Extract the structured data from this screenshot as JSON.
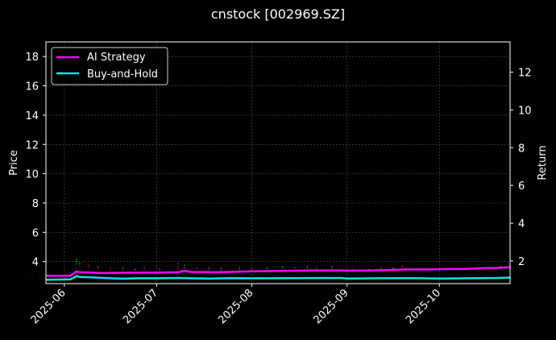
{
  "chart_data": {
    "type": "line",
    "title": "cnstock [002969.SZ]",
    "ylabel_left": "Price",
    "ylabel_right": "Return",
    "x_ticks": [
      "2025-06",
      "2025-07",
      "2025-08",
      "2025-09",
      "2025-10"
    ],
    "x_tick_dates": [
      "2025-06-01",
      "2025-07-01",
      "2025-08-01",
      "2025-09-01",
      "2025-10-01"
    ],
    "xlim": [
      "2025-05-26",
      "2025-10-24"
    ],
    "ylim_left": [
      2.5,
      19
    ],
    "yticks_left": [
      4,
      6,
      8,
      10,
      12,
      14,
      16,
      18
    ],
    "ylim_right": [
      0.8,
      13.6
    ],
    "yticks_right": [
      2,
      4,
      6,
      8,
      10,
      12
    ],
    "grid": true,
    "legend_position": "top-left",
    "colors": {
      "background": "#000000",
      "ai": "#ff00ff",
      "bh": "#00e5e5",
      "up": "#00c853",
      "down": "#ff1744",
      "grid": "#555555"
    },
    "series": [
      {
        "name": "AI Strategy",
        "axis": "right",
        "points": [
          [
            "2025-05-26",
            1.22
          ],
          [
            "2025-05-30",
            1.22
          ],
          [
            "2025-06-03",
            1.22
          ],
          [
            "2025-06-05",
            1.45
          ],
          [
            "2025-06-06",
            1.4
          ],
          [
            "2025-06-10",
            1.38
          ],
          [
            "2025-06-13",
            1.36
          ],
          [
            "2025-06-18",
            1.37
          ],
          [
            "2025-06-25",
            1.38
          ],
          [
            "2025-07-01",
            1.38
          ],
          [
            "2025-07-08",
            1.4
          ],
          [
            "2025-07-10",
            1.48
          ],
          [
            "2025-07-12",
            1.42
          ],
          [
            "2025-07-18",
            1.41
          ],
          [
            "2025-07-20",
            1.4
          ],
          [
            "2025-07-25",
            1.42
          ],
          [
            "2025-08-01",
            1.45
          ],
          [
            "2025-08-10",
            1.47
          ],
          [
            "2025-08-20",
            1.49
          ],
          [
            "2025-08-30",
            1.5
          ],
          [
            "2025-09-01",
            1.48
          ],
          [
            "2025-09-08",
            1.49
          ],
          [
            "2025-09-15",
            1.52
          ],
          [
            "2025-09-20",
            1.55
          ],
          [
            "2025-09-30",
            1.55
          ],
          [
            "2025-10-02",
            1.57
          ],
          [
            "2025-10-10",
            1.58
          ],
          [
            "2025-10-14",
            1.61
          ],
          [
            "2025-10-20",
            1.63
          ],
          [
            "2025-10-24",
            1.67
          ]
        ]
      },
      {
        "name": "Buy-and-Hold",
        "axis": "right",
        "points": [
          [
            "2025-05-26",
            1.0
          ],
          [
            "2025-06-03",
            1.02
          ],
          [
            "2025-06-05",
            1.2
          ],
          [
            "2025-06-06",
            1.15
          ],
          [
            "2025-06-10",
            1.13
          ],
          [
            "2025-06-15",
            1.09
          ],
          [
            "2025-06-20",
            1.06
          ],
          [
            "2025-06-25",
            1.08
          ],
          [
            "2025-07-01",
            1.08
          ],
          [
            "2025-07-08",
            1.1
          ],
          [
            "2025-07-12",
            1.08
          ],
          [
            "2025-07-18",
            1.07
          ],
          [
            "2025-07-25",
            1.09
          ],
          [
            "2025-08-05",
            1.08
          ],
          [
            "2025-08-15",
            1.09
          ],
          [
            "2025-08-30",
            1.1
          ],
          [
            "2025-09-01",
            1.07
          ],
          [
            "2025-09-10",
            1.08
          ],
          [
            "2025-09-20",
            1.09
          ],
          [
            "2025-09-25",
            1.08
          ],
          [
            "2025-10-01",
            1.07
          ],
          [
            "2025-10-10",
            1.08
          ],
          [
            "2025-10-20",
            1.1
          ],
          [
            "2025-10-24",
            1.12
          ]
        ]
      }
    ],
    "candles": [
      [
        "2025-06-05",
        3.8,
        4.2,
        1
      ],
      [
        "2025-06-06",
        3.7,
        3.9,
        1
      ],
      [
        "2025-06-09",
        3.6,
        3.8,
        0
      ],
      [
        "2025-06-12",
        3.5,
        3.7,
        1
      ],
      [
        "2025-06-16",
        3.4,
        3.6,
        0
      ],
      [
        "2025-06-20",
        3.4,
        3.6,
        1
      ],
      [
        "2025-06-24",
        3.4,
        3.5,
        1
      ],
      [
        "2025-06-27",
        3.4,
        3.6,
        0
      ],
      [
        "2025-07-02",
        3.4,
        3.5,
        1
      ],
      [
        "2025-07-08",
        3.5,
        3.9,
        0
      ],
      [
        "2025-07-10",
        3.5,
        3.8,
        1
      ],
      [
        "2025-07-14",
        3.5,
        3.6,
        0
      ],
      [
        "2025-07-18",
        3.4,
        3.6,
        1
      ],
      [
        "2025-07-22",
        3.4,
        3.6,
        1
      ],
      [
        "2025-07-28",
        3.4,
        3.6,
        1
      ],
      [
        "2025-08-01",
        3.4,
        3.6,
        0
      ],
      [
        "2025-08-06",
        3.4,
        3.6,
        1
      ],
      [
        "2025-08-11",
        3.5,
        3.7,
        1
      ],
      [
        "2025-08-15",
        3.5,
        3.6,
        0
      ],
      [
        "2025-08-19",
        3.5,
        3.7,
        1
      ],
      [
        "2025-08-22",
        3.5,
        3.6,
        0
      ],
      [
        "2025-08-27",
        3.5,
        3.7,
        1
      ],
      [
        "2025-09-03",
        3.4,
        3.5,
        0
      ],
      [
        "2025-09-08",
        3.4,
        3.5,
        1
      ],
      [
        "2025-09-12",
        3.4,
        3.6,
        1
      ],
      [
        "2025-09-16",
        3.4,
        3.6,
        1
      ],
      [
        "2025-09-19",
        3.4,
        3.7,
        0
      ],
      [
        "2025-09-24",
        3.4,
        3.5,
        1
      ],
      [
        "2025-09-29",
        3.4,
        3.5,
        0
      ],
      [
        "2025-10-09",
        3.4,
        3.5,
        1
      ],
      [
        "2025-10-14",
        3.5,
        3.6,
        1
      ],
      [
        "2025-10-17",
        3.5,
        3.6,
        0
      ],
      [
        "2025-10-21",
        3.5,
        3.7,
        1
      ]
    ]
  }
}
